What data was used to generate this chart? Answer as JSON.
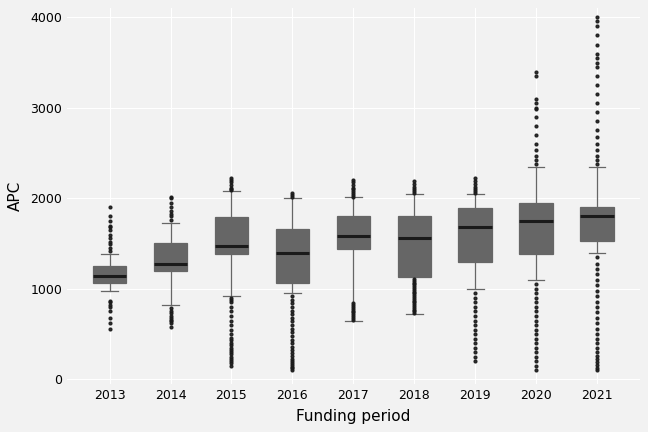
{
  "title": "",
  "xlabel": "Funding period",
  "ylabel": "APC",
  "years": [
    2013,
    2014,
    2015,
    2016,
    2017,
    2018,
    2019,
    2020,
    2021
  ],
  "box_stats": {
    "2013": {
      "q1": 1060,
      "median": 1140,
      "q3": 1250,
      "whislo": 980,
      "whishi": 1380,
      "fliers_low": [
        560,
        620,
        680,
        750,
        800,
        820,
        850,
        870
      ],
      "fliers_high": [
        1420,
        1450,
        1500,
        1520,
        1560,
        1600,
        1650,
        1680,
        1700,
        1750,
        1800,
        1900
      ]
    },
    "2014": {
      "q1": 1200,
      "median": 1270,
      "q3": 1510,
      "whislo": 820,
      "whishi": 1730,
      "fliers_low": [
        580,
        620,
        640,
        660,
        680,
        700,
        730,
        760,
        790
      ],
      "fliers_high": [
        1760,
        1800,
        1830,
        1860,
        1900,
        1950,
        2000,
        2010
      ]
    },
    "2015": {
      "q1": 1390,
      "median": 1470,
      "q3": 1790,
      "whislo": 920,
      "whishi": 2080,
      "fliers_low": [
        150,
        180,
        200,
        220,
        250,
        280,
        300,
        320,
        350,
        380,
        400,
        430,
        460,
        500,
        550,
        600,
        650,
        700,
        750,
        800,
        850,
        880,
        900
      ],
      "fliers_high": [
        2090,
        2100,
        2120,
        2150,
        2180,
        2200,
        2220
      ]
    },
    "2016": {
      "q1": 1070,
      "median": 1400,
      "q3": 1660,
      "whislo": 950,
      "whishi": 2000,
      "fliers_low": [
        100,
        120,
        140,
        160,
        180,
        200,
        230,
        260,
        290,
        320,
        360,
        400,
        440,
        480,
        520,
        560,
        600,
        640,
        680,
        720,
        760,
        800,
        840,
        880,
        920
      ],
      "fliers_high": [
        2020,
        2040,
        2060
      ]
    },
    "2017": {
      "q1": 1440,
      "median": 1580,
      "q3": 1810,
      "whislo": 650,
      "whishi": 2010,
      "fliers_low": [
        660,
        680,
        700,
        720,
        740,
        760,
        780,
        800,
        820,
        840
      ],
      "fliers_high": [
        2020,
        2040,
        2060,
        2080,
        2100,
        2120,
        2150,
        2180,
        2200
      ]
    },
    "2018": {
      "q1": 1130,
      "median": 1560,
      "q3": 1800,
      "whislo": 720,
      "whishi": 2050,
      "fliers_low": [
        730,
        750,
        770,
        790,
        810,
        830,
        850,
        870,
        890,
        910,
        930,
        950,
        970,
        990,
        1010,
        1030,
        1050,
        1070,
        1090,
        1110
      ],
      "fliers_high": [
        2060,
        2080,
        2100,
        2130,
        2160,
        2190
      ]
    },
    "2019": {
      "q1": 1300,
      "median": 1680,
      "q3": 1890,
      "whislo": 1000,
      "whishi": 2050,
      "fliers_low": [
        200,
        250,
        300,
        350,
        400,
        450,
        500,
        550,
        600,
        650,
        700,
        750,
        800,
        850,
        900,
        950
      ],
      "fliers_high": [
        2060,
        2080,
        2100,
        2130,
        2160,
        2190,
        2220
      ]
    },
    "2020": {
      "q1": 1390,
      "median": 1750,
      "q3": 1950,
      "whislo": 1100,
      "whishi": 2350,
      "fliers_low": [
        100,
        150,
        200,
        250,
        300,
        350,
        400,
        450,
        500,
        550,
        600,
        650,
        700,
        750,
        800,
        850,
        900,
        950,
        1000,
        1050
      ],
      "fliers_high": [
        2380,
        2420,
        2470,
        2530,
        2600,
        2700,
        2800,
        2900,
        2990,
        3000,
        3050,
        3100,
        3350,
        3400
      ]
    },
    "2021": {
      "q1": 1530,
      "median": 1800,
      "q3": 1900,
      "whislo": 1400,
      "whishi": 2350,
      "fliers_low": [
        100,
        130,
        160,
        190,
        220,
        260,
        300,
        350,
        400,
        450,
        500,
        560,
        620,
        680,
        740,
        800,
        860,
        920,
        980,
        1040,
        1100,
        1160,
        1220,
        1280,
        1350
      ],
      "fliers_high": [
        2380,
        2420,
        2470,
        2530,
        2600,
        2680,
        2760,
        2850,
        2950,
        3050,
        3150,
        3250,
        3350,
        3450,
        3500,
        3550,
        3600,
        3700,
        3800,
        3900,
        3960,
        4000
      ]
    }
  },
  "background_color": "#f2f2f2",
  "box_facecolor": "#ffffff",
  "box_linecolor": "#666666",
  "median_color": "#1a1a1a",
  "whisker_color": "#666666",
  "flier_color": "#1a1a1a",
  "grid_color": "#ffffff",
  "ylim": [
    -50,
    4100
  ],
  "yticks": [
    0,
    1000,
    2000,
    3000,
    4000
  ]
}
